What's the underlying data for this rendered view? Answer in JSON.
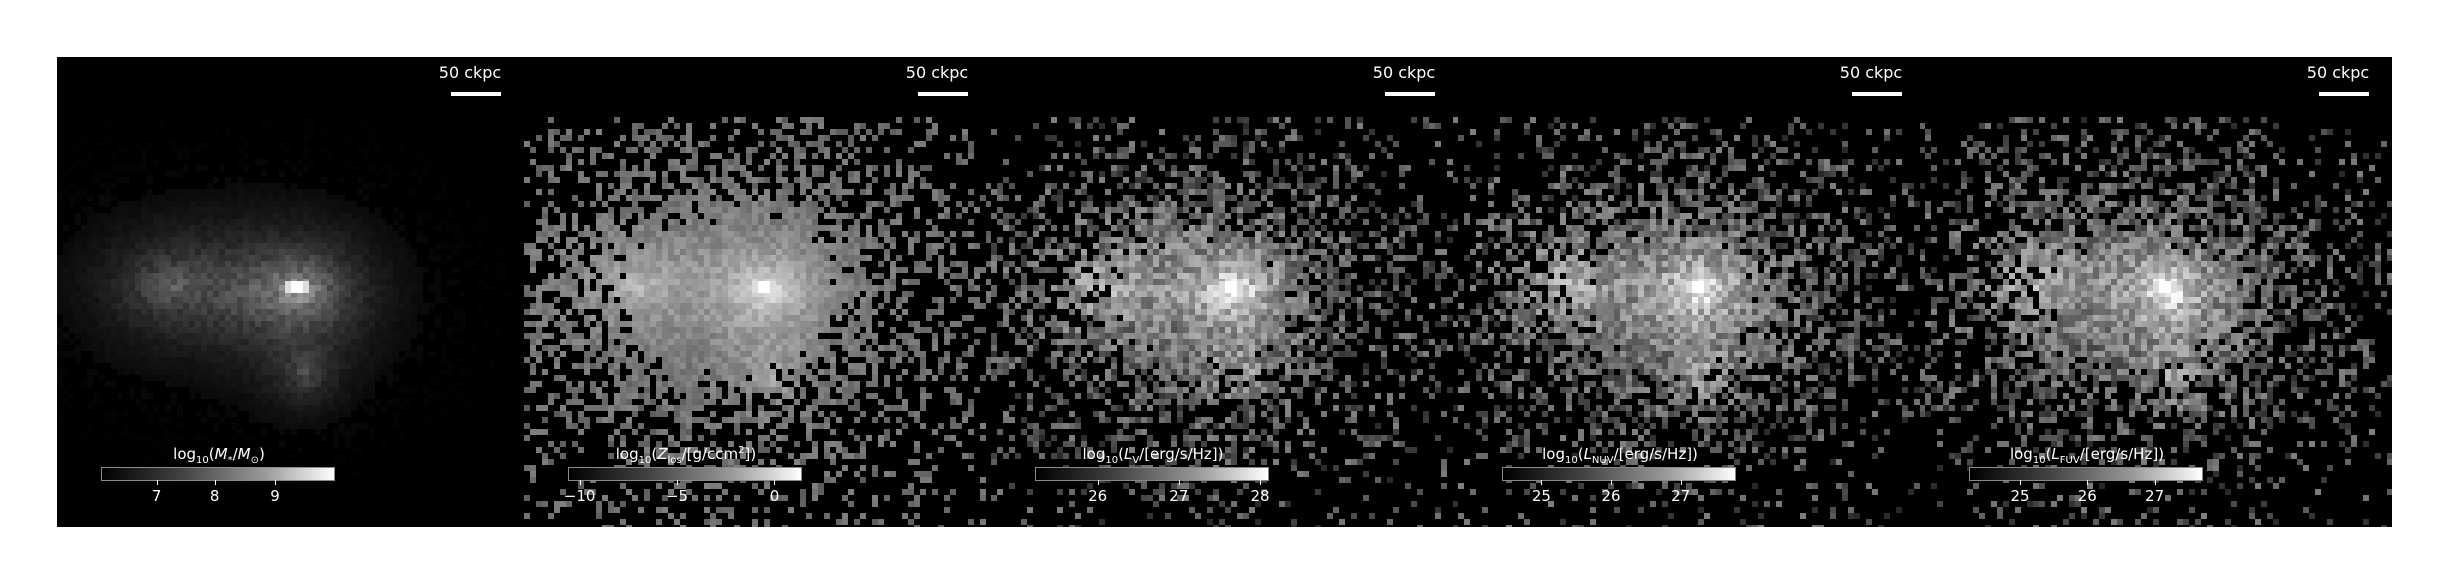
{
  "panels": [
    {
      "scale_label": "50 ckpc",
      "cbar_html": "log<sub>10</sub>(<i>M</i><sub>*</sub>/<i>M</i><sub>⊙</sub>)",
      "ticks": [
        "7",
        "8",
        "9"
      ],
      "tick_fractions": [
        0.24,
        0.49,
        0.75
      ],
      "map": "mass"
    },
    {
      "scale_label": "50 ckpc",
      "cbar_html": "log<sub>10</sub>(<i>Z</i><sub>los</sub>/[g/ccm<sup>2</sup>])",
      "ticks": [
        "−10",
        "−5",
        "0"
      ],
      "tick_fractions": [
        0.05,
        0.47,
        0.89
      ],
      "map": "metal"
    },
    {
      "scale_label": "50 ckpc",
      "cbar_html": "log<sub>10</sub>(<i>L</i><sub>V</sub>/[erg/s/Hz])",
      "ticks": [
        "26",
        "27",
        "28"
      ],
      "tick_fractions": [
        0.27,
        0.62,
        0.97
      ],
      "map": "lum"
    },
    {
      "scale_label": "50 ckpc",
      "cbar_html": "log<sub>10</sub>(<i>L</i><sub>NUV</sub>/[erg/s/Hz])",
      "ticks": [
        "25",
        "26",
        "27"
      ],
      "tick_fractions": [
        0.17,
        0.47,
        0.77
      ],
      "map": "lum"
    },
    {
      "scale_label": "50 ckpc",
      "cbar_html": "log<sub>10</sub>(<i>L</i><sub>FUV</sub>/[erg/s/Hz])",
      "ticks": [
        "25",
        "26",
        "27"
      ],
      "tick_fractions": [
        0.22,
        0.51,
        0.8
      ],
      "map": "lum"
    }
  ]
}
